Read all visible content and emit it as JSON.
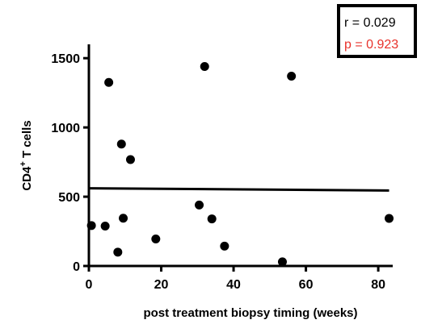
{
  "chart_data": {
    "type": "scatter",
    "xlabel": "post treatment biopsy timing (weeks)",
    "ylabel": "CD4",
    "ylabel_sup": "+",
    "ylabel_rest": " T cells",
    "xlim": [
      0,
      84
    ],
    "ylim": [
      0,
      1600
    ],
    "x_ticks": [
      0,
      20,
      40,
      60,
      80
    ],
    "y_ticks": [
      0,
      500,
      1000,
      1500
    ],
    "grid": false,
    "points": [
      {
        "x": 0.7,
        "y": 292
      },
      {
        "x": 4.5,
        "y": 288
      },
      {
        "x": 5.5,
        "y": 1325
      },
      {
        "x": 8.0,
        "y": 100
      },
      {
        "x": 9.0,
        "y": 880
      },
      {
        "x": 9.5,
        "y": 345
      },
      {
        "x": 11.5,
        "y": 768
      },
      {
        "x": 18.5,
        "y": 195
      },
      {
        "x": 30.5,
        "y": 440
      },
      {
        "x": 32.0,
        "y": 1440
      },
      {
        "x": 34.0,
        "y": 340
      },
      {
        "x": 37.5,
        "y": 143
      },
      {
        "x": 53.5,
        "y": 30
      },
      {
        "x": 56.0,
        "y": 1370
      },
      {
        "x": 83.0,
        "y": 343
      }
    ],
    "regression_line": {
      "x": [
        0,
        83
      ],
      "y": [
        561,
        545
      ]
    },
    "stats": {
      "r_text": "r = 0.029",
      "p_text": "p = 0.923",
      "r_color": "#000000",
      "p_color": "#e8322b"
    }
  }
}
